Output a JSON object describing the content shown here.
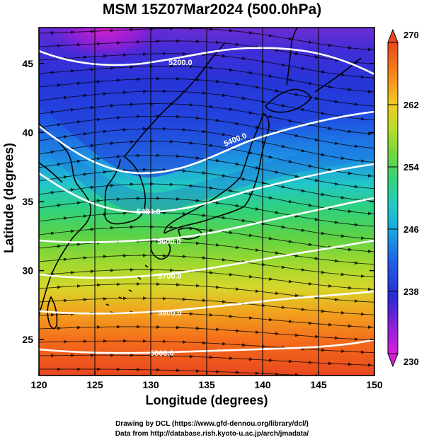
{
  "title": "MSM 15Z07Mar2024 (500.0hPa)",
  "xlabel": "Longitude (degrees)",
  "ylabel": "Latitude  (degrees)",
  "credits": [
    "Drawing by DCL (https://www.gfd-dennou.org/library/dcl/)",
    "Data from http://database.rish.kyoto-u.ac.jp/arch/jmadata/"
  ],
  "map": {
    "lon_range": [
      120,
      150
    ],
    "lat_range": [
      22.4,
      47.6
    ],
    "lon_ticks": [
      "120",
      "125",
      "130",
      "135",
      "140",
      "145",
      "150"
    ],
    "lat_ticks": [
      "25",
      "30",
      "35",
      "40",
      "45"
    ],
    "shading_variable": "temperature (K)",
    "wind": "streamlines, westerly"
  },
  "colorbar": {
    "min": 230,
    "max": 270,
    "tick_labels": [
      "230",
      "238",
      "246",
      "254",
      "262",
      "270"
    ],
    "colors": [
      "#d71fd8",
      "#7a21d8",
      "#2a2ad2",
      "#1f63e6",
      "#18b7dc",
      "#27ceb0",
      "#3fd46a",
      "#7ad83a",
      "#c8de28",
      "#f4c21d",
      "#f7861c",
      "#e84a1e"
    ]
  },
  "contours": [
    {
      "label": "5200.0"
    },
    {
      "label": "5400.0"
    },
    {
      "label": "5400.0"
    },
    {
      "label": "5600.0"
    },
    {
      "label": "5700.0"
    },
    {
      "label": "5800.0"
    },
    {
      "label": "5800.0"
    }
  ]
}
